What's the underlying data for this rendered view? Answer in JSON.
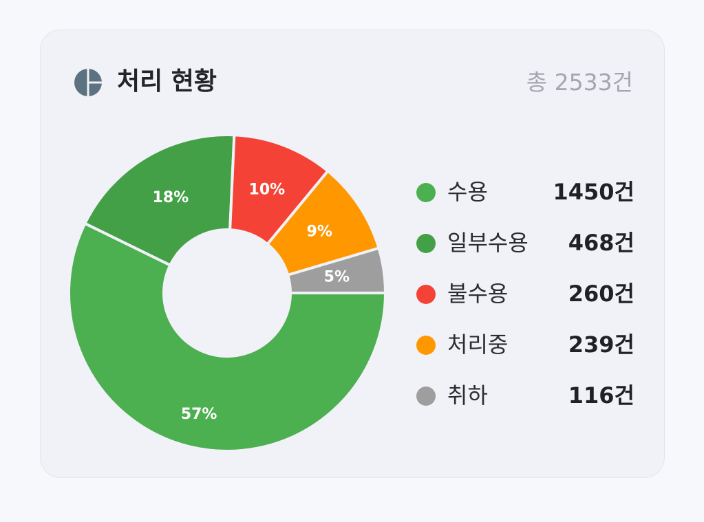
{
  "header": {
    "title": "처리 현황",
    "total": "총 2533건",
    "icon": "pie-chart-icon"
  },
  "chart_data": {
    "type": "pie",
    "donut": true,
    "series": [
      {
        "name": "수용",
        "count": 1450,
        "percent_label": "57%",
        "color": "#4caf50"
      },
      {
        "name": "일부수용",
        "count": 468,
        "percent_label": "18%",
        "color": "#43a047"
      },
      {
        "name": "불수용",
        "count": 260,
        "percent_label": "10%",
        "color": "#f44336"
      },
      {
        "name": "처리중",
        "count": 239,
        "percent_label": "9%",
        "color": "#ff9800"
      },
      {
        "name": "취하",
        "count": 116,
        "percent_label": "5%",
        "color": "#9e9e9e"
      }
    ],
    "legend_position": "right"
  },
  "legend": [
    {
      "label": "수용",
      "count": "1450건"
    },
    {
      "label": "일부수용",
      "count": "468건"
    },
    {
      "label": "불수용",
      "count": "260건"
    },
    {
      "label": "처리중",
      "count": "239건"
    },
    {
      "label": "취하",
      "count": "116건"
    }
  ]
}
